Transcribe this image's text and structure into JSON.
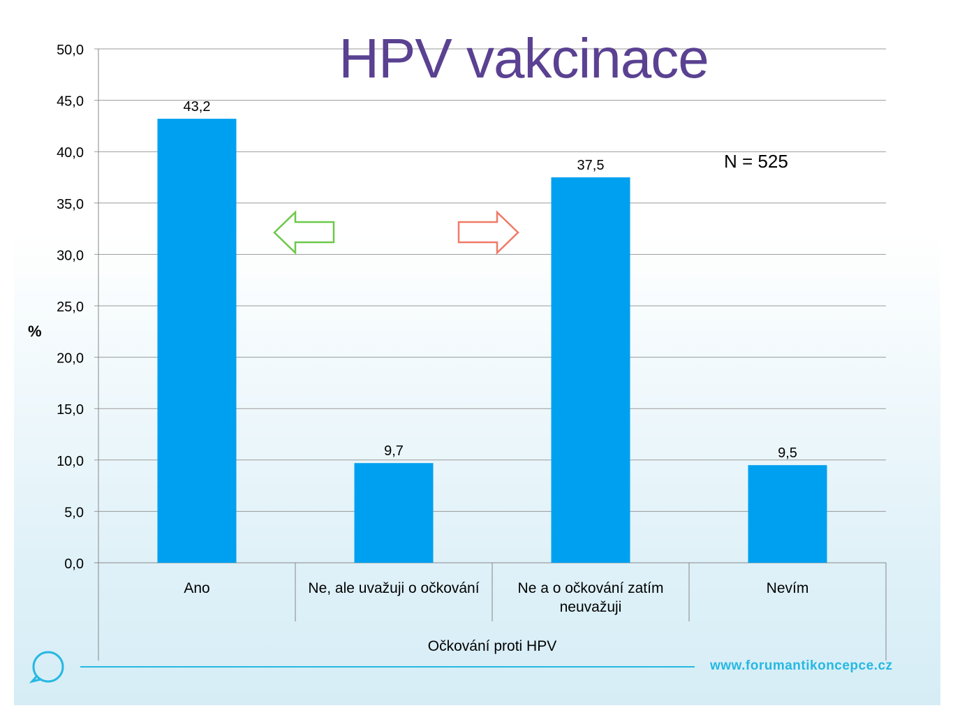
{
  "chart_data": {
    "type": "bar",
    "title": "HPV vakcinace",
    "xlabel": "Očkování proti HPV",
    "ylabel": "%",
    "categories": [
      "Ano",
      "Ne, ale uvažuji o očkování",
      "Ne a o očkování zatím|neuvažuji",
      "Nevím"
    ],
    "values": [
      43.2,
      9.7,
      37.5,
      9.5
    ],
    "value_labels": [
      "43,2",
      "9,7",
      "37,5",
      "9,5"
    ],
    "ylim": [
      0,
      50
    ],
    "yticks": [
      "0,0",
      "5,0",
      "10,0",
      "15,0",
      "20,0",
      "25,0",
      "30,0",
      "35,0",
      "40,0",
      "45,0",
      "50,0"
    ],
    "grid": true,
    "bar_color": "#00a0f0",
    "annotation": "N = 525"
  },
  "arrows": {
    "left_color": "#6cc94a",
    "right_color": "#f07a68"
  },
  "footer": {
    "url": "www.forumantikoncepce.cz",
    "accent": "#26b8e2",
    "logo_icon": "speech-bubble-icon"
  }
}
